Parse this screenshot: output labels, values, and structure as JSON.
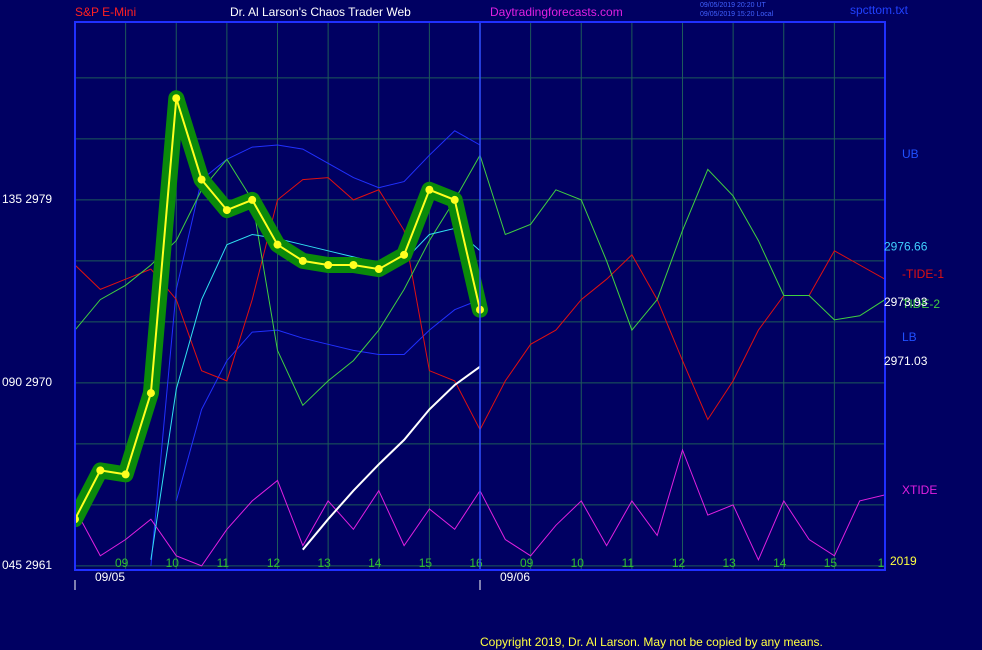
{
  "chart_data": {
    "type": "line",
    "title": "S&P E-Mini",
    "subtitle": "Dr. Al Larson's Chaos Trader Web",
    "site": "Daytradingforecasts.com",
    "timestamps": [
      "09/05/2019 20:20 UT",
      "09/05/2019 15:20 Local"
    ],
    "file_name": "spcttom.txt",
    "copyright": "Copyright 2019, Dr. Al Larson. May not be copied by any means.",
    "dates": [
      {
        "value": 0,
        "label": "09/05"
      },
      {
        "value": 8,
        "label": "09/06"
      }
    ],
    "year": "2019",
    "xlim": [
      0,
      16
    ],
    "xticks": [
      {
        "value": 1,
        "label": "09"
      },
      {
        "value": 2,
        "label": "10"
      },
      {
        "value": 3,
        "label": "11"
      },
      {
        "value": 4,
        "label": "12"
      },
      {
        "value": 5,
        "label": "13"
      },
      {
        "value": 6,
        "label": "14"
      },
      {
        "value": 7,
        "label": "15"
      },
      {
        "value": 8,
        "label": "16"
      },
      {
        "value": 9,
        "label": "09"
      },
      {
        "value": 10,
        "label": "10"
      },
      {
        "value": 11,
        "label": "11"
      },
      {
        "value": 12,
        "label": "12"
      },
      {
        "value": 13,
        "label": "13"
      },
      {
        "value": 14,
        "label": "14"
      },
      {
        "value": 15,
        "label": "15"
      },
      {
        "value": 16,
        "label": "1"
      }
    ],
    "divider": 8,
    "ylim": [
      2960.8,
      2987.75
    ],
    "yticks": [
      {
        "value": 2961,
        "label": "045  2961"
      },
      {
        "value": 2970,
        "label": "090  2970"
      },
      {
        "value": 2979,
        "label": "135  2979"
      }
    ],
    "ygrid": [
      2964,
      2967,
      2973,
      2976,
      2982,
      2985
    ],
    "grid": true,
    "x": [
      0,
      0.5,
      1,
      1.5,
      2,
      2.5,
      3,
      3.5,
      4,
      4.5,
      5,
      5.5,
      6,
      6.5,
      7,
      7.5,
      8,
      8.5,
      9,
      9.5,
      10,
      10.5,
      11,
      11.5,
      12,
      12.5,
      13,
      13.5,
      14,
      14.5,
      15,
      15.5,
      16
    ],
    "series": [
      {
        "name": "UB",
        "color": "#2030ff",
        "values": [
          null,
          null,
          null,
          2961.0,
          2974.6,
          2980.0,
          2981.0,
          2981.6,
          2981.7,
          2981.5,
          2980.8,
          2980.1,
          2979.6,
          2979.9,
          2981.2,
          2982.4,
          2981.7,
          null,
          null,
          null,
          null,
          null,
          null,
          null,
          null,
          null,
          null,
          null,
          null,
          null,
          null,
          null,
          null
        ]
      },
      {
        "name": "LB",
        "color": "#2030ff",
        "values": [
          null,
          null,
          null,
          null,
          2964.2,
          2968.7,
          2971.1,
          2972.5,
          2972.6,
          2972.2,
          2971.9,
          2971.6,
          2971.4,
          2971.4,
          2972.6,
          2973.6,
          2974.1,
          null,
          null,
          null,
          null,
          null,
          null,
          null,
          null,
          null,
          null,
          null,
          null,
          null,
          null,
          null,
          null
        ]
      },
      {
        "name": "-TIDE-1",
        "color": "#e01010",
        "values": [
          2975.8,
          2974.6,
          2975.1,
          2975.6,
          2974.1,
          2970.6,
          2970.1,
          2974.1,
          2979.0,
          2980.0,
          2980.1,
          2979.0,
          2979.5,
          2977.5,
          2970.6,
          2970.1,
          2967.7,
          2970.1,
          2971.9,
          2972.6,
          2974.1,
          2975.1,
          2976.3,
          2974.1,
          2971.1,
          2968.2,
          2970.1,
          2972.6,
          2974.3,
          2974.3,
          2976.5,
          2975.8,
          2975.1
        ]
      },
      {
        "name": "TIDE-2",
        "color": "#40d040",
        "values": [
          2972.6,
          2974.1,
          2974.8,
          2975.8,
          2977.0,
          2979.5,
          2981.0,
          2979.0,
          2971.6,
          2968.9,
          2970.1,
          2971.1,
          2972.6,
          2974.6,
          2977.0,
          2979.0,
          2981.2,
          2977.3,
          2977.8,
          2979.5,
          2979.0,
          2976.0,
          2972.6,
          2974.1,
          2977.5,
          2980.5,
          2979.2,
          2977.0,
          2974.3,
          2974.3,
          2973.1,
          2973.3,
          2974.1
        ]
      },
      {
        "name": "XTIDE",
        "color": "#e020e0",
        "values": [
          2963.8,
          2961.5,
          2962.3,
          2963.3,
          2961.5,
          2961.0,
          2962.8,
          2964.2,
          2965.2,
          2962.0,
          2964.2,
          2962.8,
          2964.7,
          2962.0,
          2963.8,
          2962.8,
          2964.7,
          2962.3,
          2961.5,
          2963.0,
          2964.2,
          2962.0,
          2964.2,
          2962.5,
          2966.7,
          2963.5,
          2964.0,
          2961.3,
          2964.2,
          2962.3,
          2961.5,
          2964.2,
          2964.5
        ]
      },
      {
        "color": "#ffffff",
        "values": [
          null,
          null,
          null,
          null,
          null,
          null,
          null,
          null,
          null,
          2961.8,
          2963.3,
          2964.7,
          2966.0,
          2967.2,
          2968.7,
          2969.9,
          2970.8,
          null,
          null,
          null,
          null,
          null,
          null,
          null,
          null,
          null,
          null,
          null,
          null,
          null,
          null,
          null,
          null
        ]
      },
      {
        "color": "#30e0f0",
        "values": [
          null,
          null,
          null,
          2961.3,
          2969.7,
          2974.1,
          2976.8,
          2977.3,
          2977.1,
          2976.8,
          2976.5,
          2976.2,
          2975.9,
          2976.0,
          2977.3,
          2977.6,
          2976.5,
          null,
          null,
          null,
          null,
          null,
          null,
          null,
          null,
          null,
          null,
          null,
          null,
          null,
          null,
          null,
          null
        ]
      },
      {
        "color": "#ffff20",
        "price": true,
        "values": [
          2963.3,
          2965.7,
          2965.5,
          2969.5,
          2984.0,
          2980.0,
          2978.5,
          2979.0,
          2976.8,
          2976.0,
          2975.8,
          2975.8,
          2975.6,
          2976.3,
          2979.5,
          2979.0,
          2973.6,
          null,
          null,
          null,
          null,
          null,
          null,
          null,
          null,
          null,
          null,
          null,
          null,
          null,
          null,
          null,
          null
        ]
      }
    ],
    "last_values": [
      {
        "value": 2976.66,
        "color": "#40d0ff"
      },
      {
        "value": 2973.93,
        "color": "#ffffff"
      },
      {
        "value": 2971.03,
        "color": "#ffffff"
      }
    ]
  }
}
